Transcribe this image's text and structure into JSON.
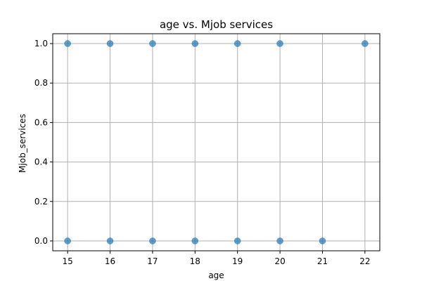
{
  "chart_data": {
    "type": "scatter",
    "title": "age vs. Mjob services",
    "xlabel": "age",
    "ylabel": "Mjob_services",
    "xlim": [
      14.65,
      22.35
    ],
    "ylim": [
      -0.05,
      1.05
    ],
    "xticks": [
      15,
      16,
      17,
      18,
      19,
      20,
      21,
      22
    ],
    "yticks": [
      0.0,
      0.2,
      0.4,
      0.6,
      0.8,
      1.0
    ],
    "ytick_labels": [
      "0.0",
      "0.2",
      "0.4",
      "0.6",
      "0.8",
      "1.0"
    ],
    "grid": true,
    "marker_color": "#1f77b4",
    "marker_alpha": 0.7,
    "series": [
      {
        "points": [
          {
            "x": 15,
            "y": 1
          },
          {
            "x": 16,
            "y": 1
          },
          {
            "x": 17,
            "y": 1
          },
          {
            "x": 18,
            "y": 1
          },
          {
            "x": 19,
            "y": 1
          },
          {
            "x": 20,
            "y": 1
          },
          {
            "x": 22,
            "y": 1
          },
          {
            "x": 15,
            "y": 0
          },
          {
            "x": 16,
            "y": 0
          },
          {
            "x": 17,
            "y": 0
          },
          {
            "x": 18,
            "y": 0
          },
          {
            "x": 19,
            "y": 0
          },
          {
            "x": 20,
            "y": 0
          },
          {
            "x": 21,
            "y": 0
          }
        ]
      }
    ]
  }
}
